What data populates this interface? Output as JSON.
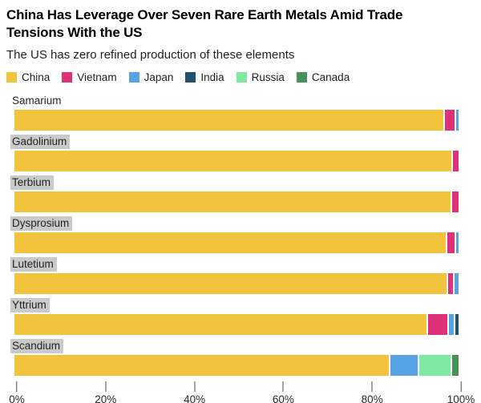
{
  "header": {
    "title": "China Has Leverage Over Seven Rare Earth Metals Amid Trade Tensions With the US",
    "title_lines": [
      "China Has Leverage Over Seven Rare Earth Metals Amid Trade",
      "Tensions With the US"
    ],
    "subtitle": "The US has zero refined production of these elements"
  },
  "chart_data": {
    "type": "bar",
    "orientation": "horizontal",
    "stacked": true,
    "unit": "percent of refined production",
    "xlim": [
      0,
      100
    ],
    "x_ticks": [
      "0%",
      "20%",
      "40%",
      "60%",
      "80%",
      "100%"
    ],
    "legend_position": "top",
    "grid": false,
    "legend": [
      {
        "name": "China",
        "color": "#F2C43D"
      },
      {
        "name": "Vietnam",
        "color": "#DE3179"
      },
      {
        "name": "Japan",
        "color": "#55A3E4"
      },
      {
        "name": "India",
        "color": "#1E526E"
      },
      {
        "name": "Russia",
        "color": "#7FE9A1"
      },
      {
        "name": "Canada",
        "color": "#47915A"
      }
    ],
    "categories": [
      "Samarium",
      "Gadolinium",
      "Terbium",
      "Dysprosium",
      "Lutetium",
      "Yttrium",
      "Scandium"
    ],
    "highlighted_labels": [
      "Gadolinium",
      "Terbium",
      "Dysprosium",
      "Lutetium",
      "Yttrium",
      "Scandium"
    ],
    "series": [
      {
        "name": "China",
        "values": [
          96.9,
          98.4,
          98.2,
          97.4,
          97.6,
          93.2,
          84.4
        ]
      },
      {
        "name": "Vietnam",
        "values": [
          2.1,
          1.3,
          1.5,
          1.6,
          1.1,
          4.3,
          0
        ]
      },
      {
        "name": "Japan",
        "values": [
          0.6,
          0,
          0,
          0.6,
          0.9,
          1.1,
          6.1
        ]
      },
      {
        "name": "India",
        "values": [
          0,
          0,
          0,
          0,
          0,
          0.7,
          0
        ]
      },
      {
        "name": "Russia",
        "values": [
          0,
          0,
          0,
          0,
          0,
          0,
          7.0
        ]
      },
      {
        "name": "Canada",
        "values": [
          0,
          0,
          0,
          0,
          0,
          0,
          1.5
        ]
      }
    ]
  }
}
